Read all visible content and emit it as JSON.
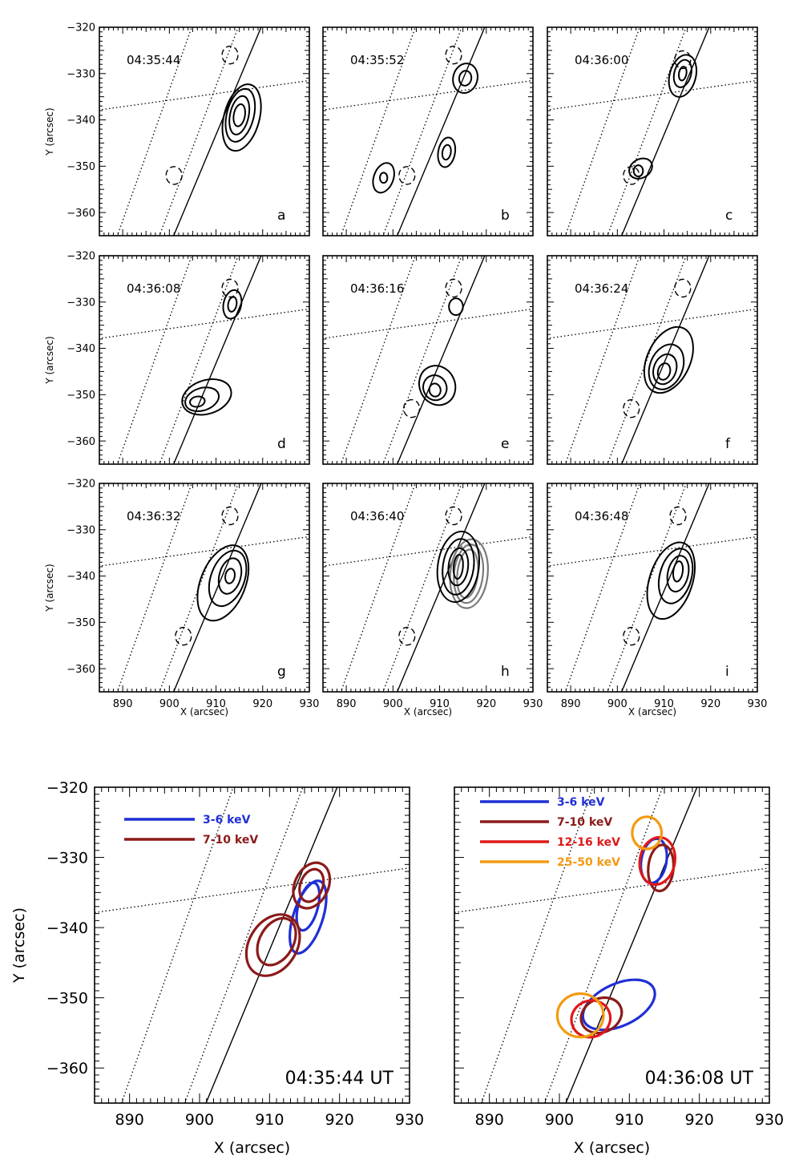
{
  "figure": {
    "small_xlabel": "X (arcsec)",
    "small_ylabel": "Y (arcsec)",
    "big_xlabel": "X (arcsec)",
    "big_ylabel": "Y (arcsec)",
    "xlim": [
      885,
      930
    ],
    "ylim": [
      -365,
      -320
    ],
    "xticks": [
      "890",
      "900",
      "910",
      "920",
      "930"
    ],
    "yticks": [
      "-320",
      "-330",
      "-340",
      "-350",
      "-360"
    ],
    "colors": {
      "3-6 keV": "#1f2fd6",
      "7-10 keV": "#8b1a1a",
      "12-16 keV": "#e01818",
      "25-50 keV": "#f39a12"
    }
  },
  "chart_data": [
    {
      "type": "contour",
      "panel": "a",
      "time": "04:35:44",
      "sources": [
        {
          "x": 915.0,
          "y": -339.0
        }
      ],
      "footpoints_dashed": [
        {
          "x": 913,
          "y": -326
        },
        {
          "x": 901,
          "y": -352
        }
      ]
    },
    {
      "type": "contour",
      "panel": "b",
      "time": "04:35:52",
      "sources": [
        {
          "x": 915.5,
          "y": -331.0
        },
        {
          "x": 911.5,
          "y": -347.0
        },
        {
          "x": 898.0,
          "y": -352.5
        }
      ],
      "footpoints_dashed": [
        {
          "x": 913,
          "y": -326
        },
        {
          "x": 903,
          "y": -352
        }
      ]
    },
    {
      "type": "contour",
      "panel": "c",
      "time": "04:36:00",
      "sources": [
        {
          "x": 914.0,
          "y": -330.0
        },
        {
          "x": 904.5,
          "y": -351.0
        }
      ],
      "footpoints_dashed": [
        {
          "x": 914,
          "y": -327
        },
        {
          "x": 903,
          "y": -352
        }
      ]
    },
    {
      "type": "contour",
      "panel": "d",
      "time": "04:36:08",
      "sources": [
        {
          "x": 913.5,
          "y": -330.5
        },
        {
          "x": 906.0,
          "y": -351.5
        }
      ],
      "footpoints_dashed": [
        {
          "x": 913,
          "y": -327
        }
      ]
    },
    {
      "type": "contour",
      "panel": "e",
      "time": "04:36:16",
      "sources": [
        {
          "x": 913.5,
          "y": -331.0
        },
        {
          "x": 909.0,
          "y": -349.0
        }
      ],
      "footpoints_dashed": [
        {
          "x": 913,
          "y": -327
        },
        {
          "x": 904,
          "y": -353
        }
      ]
    },
    {
      "type": "contour",
      "panel": "f",
      "time": "04:36:24",
      "sources": [
        {
          "x": 910.0,
          "y": -345.0
        }
      ],
      "footpoints_dashed": [
        {
          "x": 914,
          "y": -327
        },
        {
          "x": 903,
          "y": -353
        }
      ]
    },
    {
      "type": "contour",
      "panel": "g",
      "time": "04:36:32",
      "sources": [
        {
          "x": 913.0,
          "y": -340.0
        }
      ],
      "footpoints_dashed": [
        {
          "x": 913,
          "y": -327
        },
        {
          "x": 903,
          "y": -353
        }
      ]
    },
    {
      "type": "contour",
      "panel": "h",
      "time": "04:36:40",
      "sources": [
        {
          "x": 914.0,
          "y": -338.0
        }
      ],
      "footpoints_dashed": [
        {
          "x": 913,
          "y": -327
        },
        {
          "x": 903,
          "y": -353
        }
      ]
    },
    {
      "type": "contour",
      "panel": "i",
      "time": "04:36:48",
      "sources": [
        {
          "x": 913.0,
          "y": -339.0
        }
      ],
      "footpoints_dashed": [
        {
          "x": 913,
          "y": -327
        },
        {
          "x": 903,
          "y": -353
        }
      ]
    },
    {
      "type": "contour",
      "panel": "bottom-left",
      "time": "04:35:44  UT",
      "series": [
        {
          "name": "3-6 keV",
          "x": 915.5,
          "y": -338.5
        },
        {
          "name": "7-10 keV",
          "x": 913.0,
          "y": -338.5
        }
      ]
    },
    {
      "type": "contour",
      "panel": "bottom-right",
      "time": "04:36:08  UT",
      "series": [
        {
          "name": "3-6 keV",
          "x": 908.0,
          "y": -351.5
        },
        {
          "name": "7-10 keV",
          "x": 905.5,
          "y": -352.5
        },
        {
          "name": "12-16 keV",
          "x": 904.0,
          "y": -353.0
        },
        {
          "name": "25-50 keV",
          "x": 903.0,
          "y": -352.5
        }
      ]
    }
  ]
}
